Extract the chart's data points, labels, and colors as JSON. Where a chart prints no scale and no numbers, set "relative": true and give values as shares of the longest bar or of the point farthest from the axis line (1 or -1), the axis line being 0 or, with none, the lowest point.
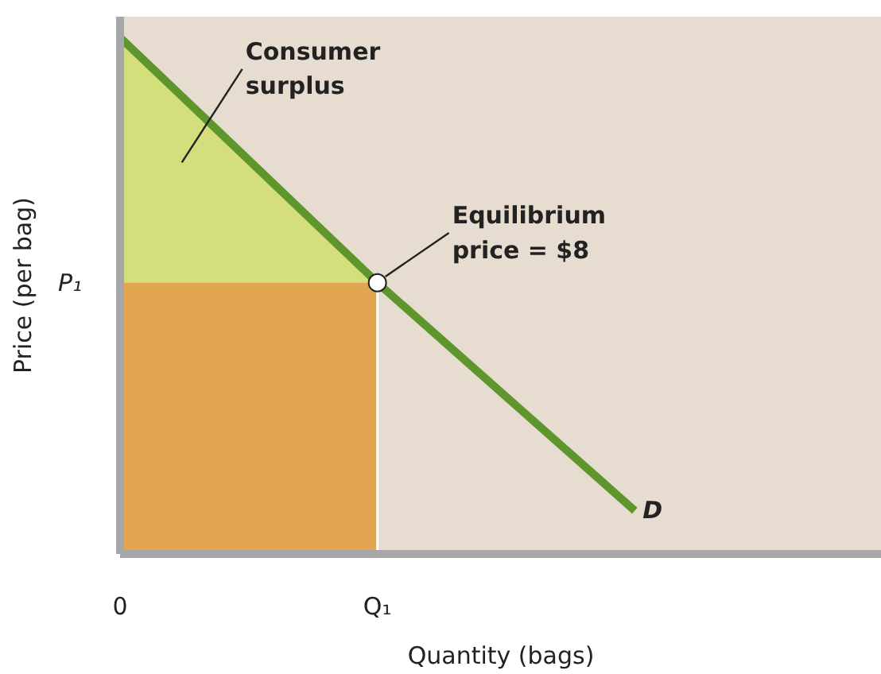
{
  "chart_data": {
    "type": "line",
    "relative": true,
    "xlabel": "Quantity (bags)",
    "ylabel": "Price (per bag)",
    "categories": [
      "0",
      "Q₁",
      null
    ],
    "series": [
      {
        "type": "area",
        "color": "#d4df7c",
        "values": [
          1,
          0.525,
          null
        ]
      },
      {
        "type": "area",
        "color": "#e2a552",
        "values": [
          0.525,
          0.525,
          null
        ]
      },
      {
        "name": "D",
        "color": "#5e962d",
        "values": [
          1,
          0.525,
          0.084
        ]
      },
      {
        "type": "scatter",
        "color": "#ffffff",
        "marker": "circle",
        "values": [
          null,
          0.525,
          null
        ]
      }
    ],
    "annotations": [
      "Consumer surplus",
      {
        "text": "Equilibrium price = $8",
        "x": "Q₁",
        "y": 0.525
      },
      "P₁"
    ]
  }
}
